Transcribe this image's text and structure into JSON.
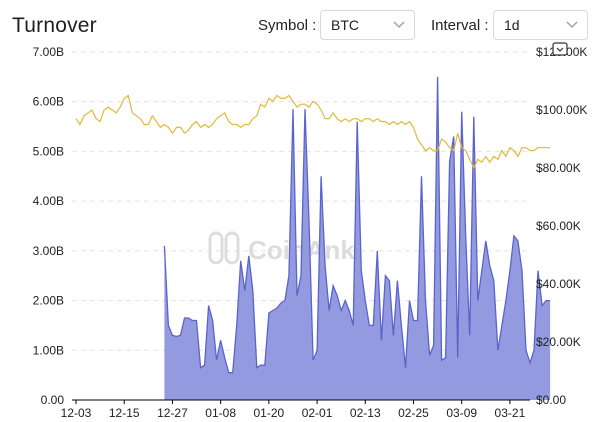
{
  "header": {
    "title": "Turnover",
    "symbol_label": "Symbol :",
    "symbol_value": "BTC",
    "interval_label": "Interval :",
    "interval_value": "1d"
  },
  "watermark": "CoinAnk",
  "colors": {
    "turnover_fill": "#8d95dd",
    "turnover_line": "#5b63cc",
    "price_line": "#e0b93a",
    "grid": "#e2e2e2",
    "baseline": "#000000"
  },
  "chart_data": {
    "type": "area",
    "title": "Turnover",
    "x_tick_labels": [
      "12-03",
      "12-15",
      "12-27",
      "01-08",
      "01-20",
      "02-01",
      "02-13",
      "02-25",
      "03-09",
      "03-21"
    ],
    "left_axis": {
      "tick_labels": [
        "0.00",
        "1.00B",
        "2.00B",
        "3.00B",
        "4.00B",
        "5.00B",
        "6.00B",
        "7.00B"
      ],
      "range_billions": [
        0,
        7
      ]
    },
    "right_axis": {
      "tick_labels": [
        "$0.00",
        "$20.00K",
        "$40.00K",
        "$60.00K",
        "$80.00K",
        "$100.00K",
        "$120.00K"
      ],
      "range_thousands_usd": [
        0,
        120
      ]
    },
    "x_day_range": [
      -1,
      113
    ],
    "series": [
      {
        "kind": "area",
        "axis": "left",
        "unit": "B",
        "points": [
          [
            22,
            3.1
          ],
          [
            23,
            1.5
          ],
          [
            24,
            1.3
          ],
          [
            25,
            1.28
          ],
          [
            26,
            1.3
          ],
          [
            27,
            1.65
          ],
          [
            28,
            1.65
          ],
          [
            29,
            1.6
          ],
          [
            30,
            1.6
          ],
          [
            31,
            0.65
          ],
          [
            32,
            0.7
          ],
          [
            33,
            1.9
          ],
          [
            34,
            1.6
          ],
          [
            35,
            0.8
          ],
          [
            36,
            1.2
          ],
          [
            37,
            0.85
          ],
          [
            38,
            0.55
          ],
          [
            39,
            0.55
          ],
          [
            40,
            1.5
          ],
          [
            41,
            2.8
          ],
          [
            42,
            2.2
          ],
          [
            43,
            2.9
          ],
          [
            44,
            2.2
          ],
          [
            45,
            0.65
          ],
          [
            46,
            0.7
          ],
          [
            47,
            0.7
          ],
          [
            48,
            1.75
          ],
          [
            49,
            1.8
          ],
          [
            50,
            1.85
          ],
          [
            51,
            1.95
          ],
          [
            52,
            2.0
          ],
          [
            53,
            2.5
          ],
          [
            54,
            5.85
          ],
          [
            55,
            2.1
          ],
          [
            56,
            2.5
          ],
          [
            57,
            5.85
          ],
          [
            58,
            3.6
          ],
          [
            59,
            0.8
          ],
          [
            60,
            1.0
          ],
          [
            61,
            4.5
          ],
          [
            62,
            2.7
          ],
          [
            63,
            1.8
          ],
          [
            64,
            2.3
          ],
          [
            65,
            2.1
          ],
          [
            66,
            1.8
          ],
          [
            67,
            2.0
          ],
          [
            68,
            1.8
          ],
          [
            69,
            1.5
          ],
          [
            70,
            5.6
          ],
          [
            71,
            2.6
          ],
          [
            72,
            2.0
          ],
          [
            73,
            1.5
          ],
          [
            74,
            1.5
          ],
          [
            75,
            3.0
          ],
          [
            76,
            1.2
          ],
          [
            77,
            2.5
          ],
          [
            78,
            2.4
          ],
          [
            79,
            1.3
          ],
          [
            80,
            2.4
          ],
          [
            81,
            1.5
          ],
          [
            82,
            0.65
          ],
          [
            83,
            2.0
          ],
          [
            84,
            1.6
          ],
          [
            85,
            1.6
          ],
          [
            86,
            4.5
          ],
          [
            87,
            2.0
          ],
          [
            88,
            0.9
          ],
          [
            89,
            1.1
          ],
          [
            90,
            6.5
          ],
          [
            91,
            0.8
          ],
          [
            92,
            0.85
          ],
          [
            93,
            4.8
          ],
          [
            94,
            5.3
          ],
          [
            95,
            0.85
          ],
          [
            96,
            5.8
          ],
          [
            97,
            3.3
          ],
          [
            98,
            1.3
          ],
          [
            99,
            5.7
          ],
          [
            100,
            2.0
          ],
          [
            101,
            2.6
          ],
          [
            102,
            3.2
          ],
          [
            103,
            2.7
          ],
          [
            104,
            2.4
          ],
          [
            105,
            1.0
          ],
          [
            106,
            1.5
          ],
          [
            107,
            2.0
          ],
          [
            108,
            2.6
          ],
          [
            109,
            3.3
          ],
          [
            110,
            3.2
          ],
          [
            111,
            2.6
          ],
          [
            112,
            1.0
          ],
          [
            113,
            0.75
          ],
          [
            114,
            1.0
          ],
          [
            115,
            2.6
          ],
          [
            116,
            1.9
          ],
          [
            117,
            2.0
          ],
          [
            118,
            2.0
          ]
        ]
      },
      {
        "kind": "line",
        "axis": "right",
        "unit": "$K",
        "points": [
          [
            0,
            97
          ],
          [
            1,
            95
          ],
          [
            2,
            98
          ],
          [
            3,
            99
          ],
          [
            4,
            100
          ],
          [
            5,
            97
          ],
          [
            6,
            96
          ],
          [
            7,
            100
          ],
          [
            8,
            101
          ],
          [
            9,
            100
          ],
          [
            10,
            99
          ],
          [
            11,
            101
          ],
          [
            12,
            104
          ],
          [
            13,
            105
          ],
          [
            14,
            99
          ],
          [
            15,
            98
          ],
          [
            16,
            97
          ],
          [
            17,
            95
          ],
          [
            18,
            95
          ],
          [
            19,
            98
          ],
          [
            20,
            96
          ],
          [
            21,
            94
          ],
          [
            22,
            95
          ],
          [
            23,
            94
          ],
          [
            24,
            92
          ],
          [
            25,
            94
          ],
          [
            26,
            94
          ],
          [
            27,
            92
          ],
          [
            28,
            93
          ],
          [
            29,
            95
          ],
          [
            30,
            96
          ],
          [
            31,
            94
          ],
          [
            32,
            95
          ],
          [
            33,
            94
          ],
          [
            34,
            95
          ],
          [
            35,
            97
          ],
          [
            36,
            98
          ],
          [
            37,
            99
          ],
          [
            38,
            96
          ],
          [
            39,
            95
          ],
          [
            40,
            95
          ],
          [
            41,
            94
          ],
          [
            42,
            95
          ],
          [
            43,
            95
          ],
          [
            44,
            97
          ],
          [
            45,
            98
          ],
          [
            46,
            102
          ],
          [
            47,
            101
          ],
          [
            48,
            104
          ],
          [
            49,
            103
          ],
          [
            50,
            105
          ],
          [
            51,
            104
          ],
          [
            52,
            104
          ],
          [
            53,
            105
          ],
          [
            54,
            103
          ],
          [
            55,
            101
          ],
          [
            56,
            102
          ],
          [
            57,
            102
          ],
          [
            58,
            101
          ],
          [
            59,
            103
          ],
          [
            60,
            102
          ],
          [
            61,
            100
          ],
          [
            62,
            97
          ],
          [
            63,
            97
          ],
          [
            64,
            99
          ],
          [
            65,
            97
          ],
          [
            66,
            96
          ],
          [
            67,
            97
          ],
          [
            68,
            96
          ],
          [
            69,
            97
          ],
          [
            70,
            97
          ],
          [
            71,
            96
          ],
          [
            72,
            97
          ],
          [
            73,
            97
          ],
          [
            74,
            96
          ],
          [
            75,
            97
          ],
          [
            76,
            96
          ],
          [
            77,
            96
          ],
          [
            78,
            95
          ],
          [
            79,
            96
          ],
          [
            80,
            95
          ],
          [
            81,
            96
          ],
          [
            82,
            95
          ],
          [
            83,
            96
          ],
          [
            84,
            94
          ],
          [
            85,
            90
          ],
          [
            86,
            88
          ],
          [
            87,
            86
          ],
          [
            88,
            87
          ],
          [
            89,
            86
          ],
          [
            90,
            86
          ],
          [
            91,
            90
          ],
          [
            92,
            89
          ],
          [
            93,
            87
          ],
          [
            94,
            86
          ],
          [
            95,
            92
          ],
          [
            96,
            87
          ],
          [
            97,
            86
          ],
          [
            98,
            83
          ],
          [
            99,
            80
          ],
          [
            100,
            83
          ],
          [
            101,
            82
          ],
          [
            102,
            84
          ],
          [
            103,
            82
          ],
          [
            104,
            84
          ],
          [
            105,
            83
          ],
          [
            106,
            86
          ],
          [
            107,
            84
          ],
          [
            108,
            87
          ],
          [
            109,
            86
          ],
          [
            110,
            84
          ],
          [
            111,
            87
          ],
          [
            112,
            87
          ],
          [
            113,
            86
          ],
          [
            114,
            86
          ],
          [
            115,
            87
          ],
          [
            116,
            87
          ],
          [
            117,
            87
          ],
          [
            118,
            87
          ]
        ]
      }
    ],
    "grid": true,
    "legend": "none"
  }
}
